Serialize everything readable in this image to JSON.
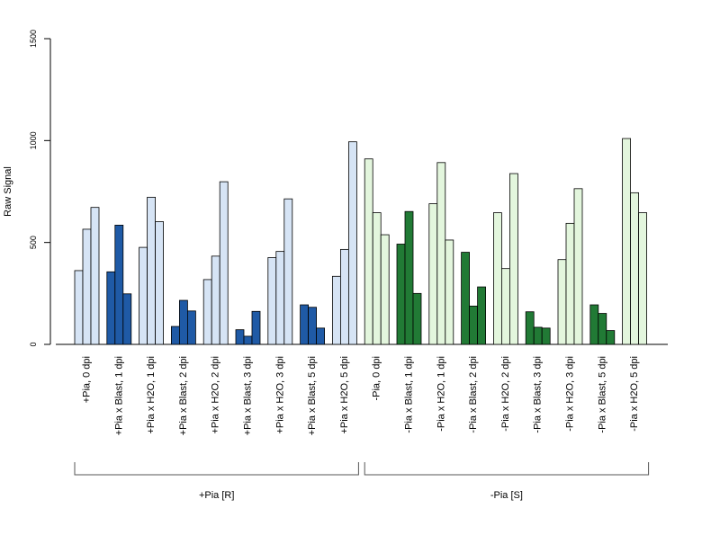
{
  "chart_data": {
    "type": "bar",
    "ylabel": "Raw Signal",
    "ylim": [
      0,
      1500
    ],
    "yticks": [
      "0",
      "500",
      "1000",
      "1500"
    ],
    "grid": false,
    "bars_per_group": 3,
    "colors": {
      "light_blue": "#d6e4f5",
      "dark_blue": "#1f5aa6",
      "light_green": "#e3f6dd",
      "dark_green": "#217a35"
    },
    "categories": [
      "+Pia, 0 dpi",
      "+Pia x Blast, 1 dpi",
      "+Pia x H2O, 1 dpi",
      "+Pia x Blast, 2 dpi",
      "+Pia x H2O, 2 dpi",
      "+Pia x Blast, 3 dpi",
      "+Pia x H2O, 3 dpi",
      "+Pia x Blast, 5 dpi",
      "+Pia x H2O, 5 dpi",
      "-Pia, 0 dpi",
      "-Pia x Blast, 1 dpi",
      "-Pia x H2O, 1 dpi",
      "-Pia x Blast, 2 dpi",
      "-Pia x H2O, 2 dpi",
      "-Pia x Blast, 3 dpi",
      "-Pia x H2O, 3 dpi",
      "-Pia x Blast, 5 dpi",
      "-Pia x H2O, 5 dpi"
    ],
    "values": [
      [
        362,
        565,
        672
      ],
      [
        356,
        585,
        248
      ],
      [
        476,
        722,
        602
      ],
      [
        88,
        216,
        164
      ],
      [
        318,
        433,
        798
      ],
      [
        72,
        40,
        162
      ],
      [
        426,
        456,
        714
      ],
      [
        194,
        182,
        80
      ],
      [
        334,
        466,
        994
      ],
      [
        910,
        646,
        538
      ],
      [
        492,
        652,
        250
      ],
      [
        690,
        892,
        512
      ],
      [
        452,
        188,
        282
      ],
      [
        646,
        372,
        838
      ],
      [
        160,
        84,
        80
      ],
      [
        416,
        594,
        764
      ],
      [
        194,
        152,
        68
      ],
      [
        1010,
        744,
        646
      ]
    ],
    "bar_colors": [
      "light_blue",
      "dark_blue",
      "light_blue",
      "dark_blue",
      "light_blue",
      "dark_blue",
      "light_blue",
      "dark_blue",
      "light_blue",
      "light_green",
      "dark_green",
      "light_green",
      "dark_green",
      "light_green",
      "dark_green",
      "light_green",
      "dark_green",
      "light_green"
    ],
    "groups": [
      {
        "label": "+Pia [R]",
        "first": 0,
        "last": 8
      },
      {
        "label": "-Pia [S]",
        "first": 9,
        "last": 17
      }
    ]
  }
}
